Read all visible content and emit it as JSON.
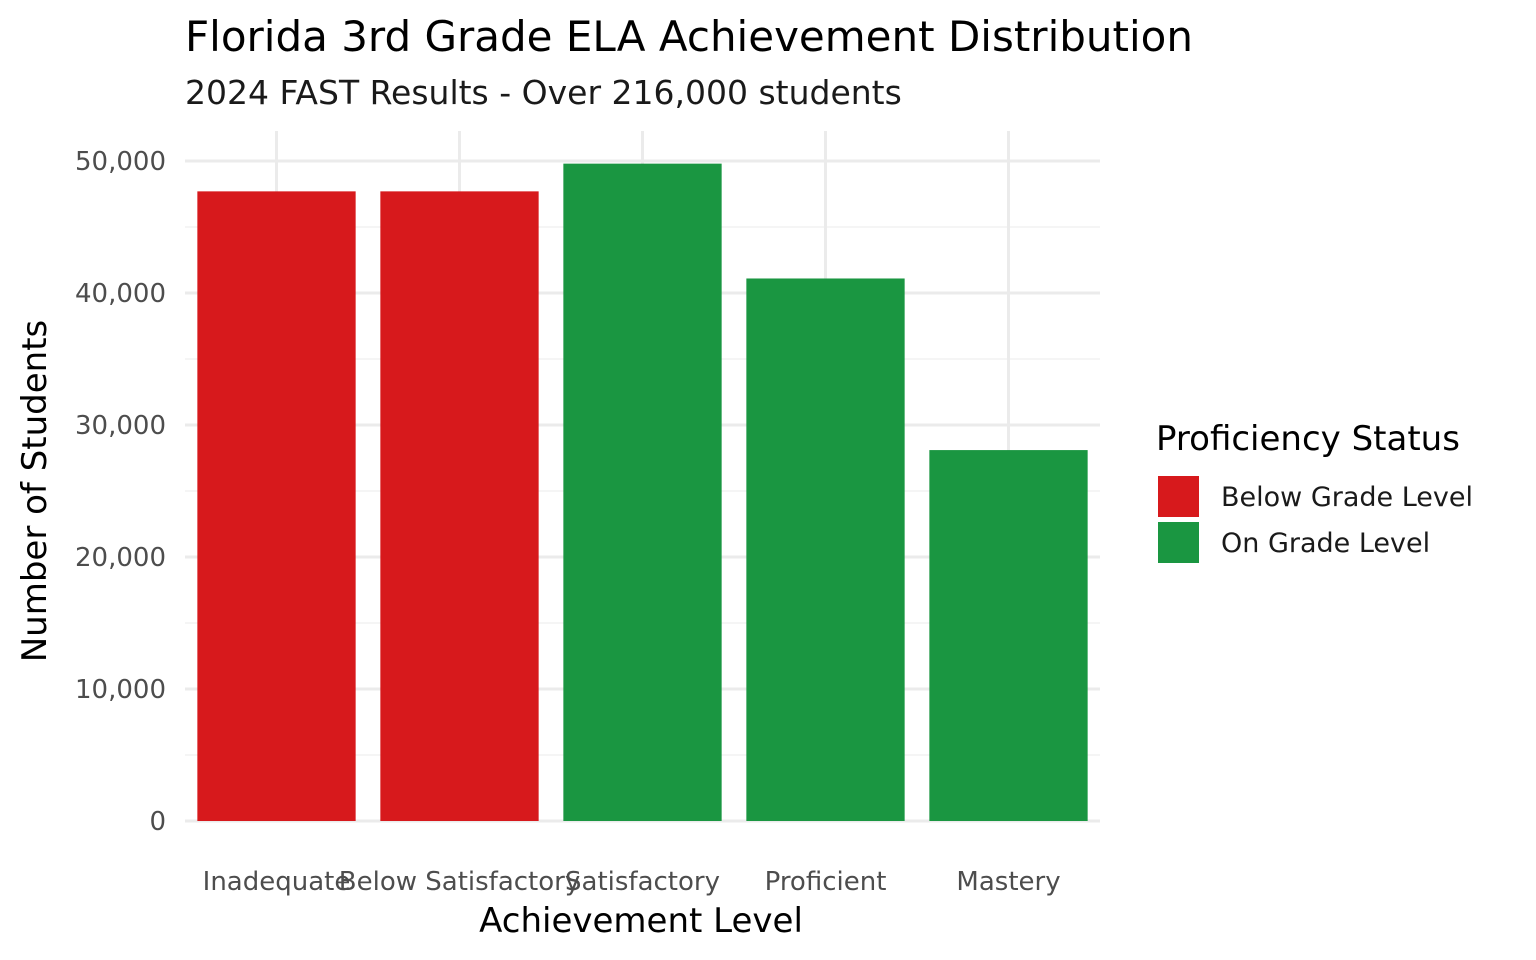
{
  "chart_data": {
    "type": "bar",
    "title": "Florida 3rd Grade ELA Achievement Distribution",
    "subtitle": "2024 FAST Results - Over 216,000 students",
    "xlabel": "Achievement Level",
    "ylabel": "Number of Students",
    "categories": [
      "Inadequate",
      "Below Satisfactory",
      "Satisfactory",
      "Proficient",
      "Mastery"
    ],
    "values": [
      47700,
      47700,
      49800,
      41100,
      28100
    ],
    "groups": [
      "Below Grade Level",
      "Below Grade Level",
      "On Grade Level",
      "On Grade Level",
      "On Grade Level"
    ],
    "ylim": [
      0,
      50000
    ],
    "yticks": [
      0,
      10000,
      20000,
      30000,
      40000,
      50000
    ],
    "ytick_labels": [
      "0",
      "10,000",
      "20,000",
      "30,000",
      "40,000",
      "50,000"
    ],
    "grid": true,
    "legend": {
      "title": "Proficiency Status",
      "placement": "right",
      "entries": [
        {
          "label": "Below Grade Level",
          "color": "#d7191c"
        },
        {
          "label": "On Grade Level",
          "color": "#1a9641"
        }
      ]
    }
  }
}
